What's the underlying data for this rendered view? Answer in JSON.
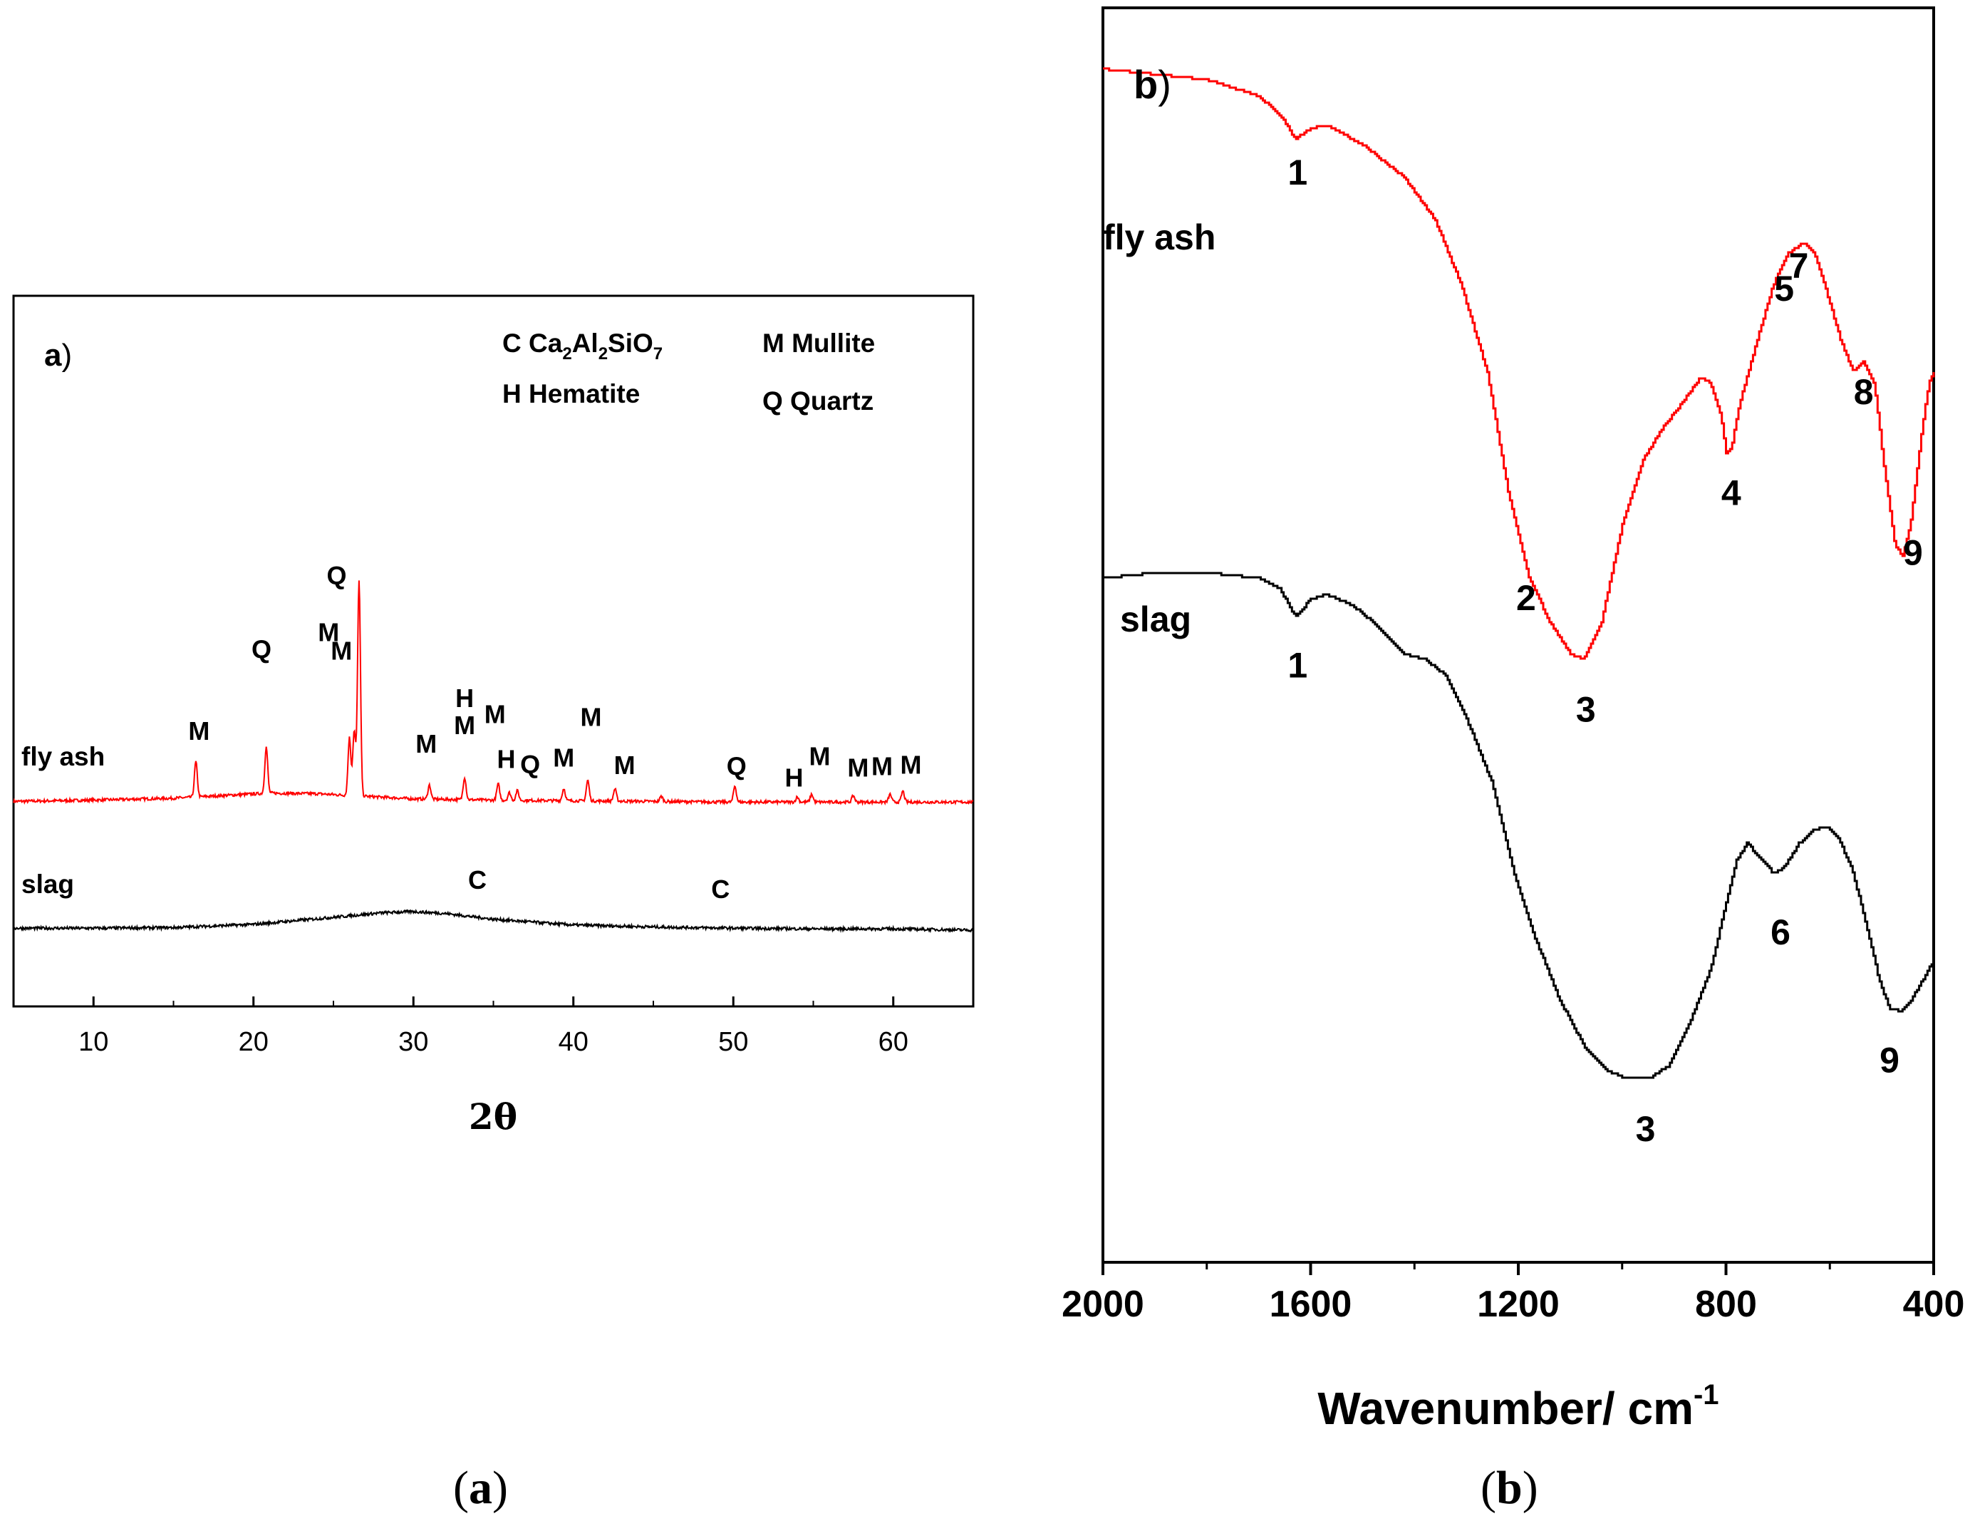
{
  "captions": {
    "a_open": "(",
    "a_letter": "a",
    "a_close": ")",
    "b_open": "(",
    "b_letter": "b",
    "b_close": ")"
  },
  "chart_data": [
    {
      "type": "line",
      "panel_label_letter": "a",
      "panel_label_paren": ")",
      "xlabel": "2θ",
      "ylabel": "",
      "xlim": [
        5,
        65
      ],
      "xticks": [
        10,
        20,
        30,
        40,
        50,
        60
      ],
      "y_ticks_shown": false,
      "colors": {
        "fly ash": "#ff0000",
        "slag": "#000000"
      },
      "legend_entries": [
        {
          "symbol": "C",
          "name": "Ca",
          "sub1": "2",
          "mid": "Al",
          "sub2": "2",
          "end": "SiO",
          "sub3": "7"
        },
        {
          "text": "M Mullite"
        },
        {
          "text": "H Hematite"
        },
        {
          "text": "Q Quartz"
        }
      ],
      "series": [
        {
          "name": "fly ash",
          "color": "#ff0000",
          "baseline": [
            [
              5,
              0.04
            ],
            [
              10,
              0.06
            ],
            [
              15,
              0.09
            ],
            [
              18,
              0.13
            ],
            [
              21,
              0.17
            ],
            [
              24,
              0.16
            ],
            [
              27,
              0.12
            ],
            [
              30,
              0.08
            ],
            [
              35,
              0.06
            ],
            [
              40,
              0.05
            ],
            [
              45,
              0.04
            ],
            [
              50,
              0.03
            ],
            [
              55,
              0.03
            ],
            [
              60,
              0.03
            ],
            [
              65,
              0.03
            ]
          ],
          "peaks": [
            {
              "x": 16.4,
              "h": 0.55
            },
            {
              "x": 20.8,
              "h": 0.72
            },
            {
              "x": 26.0,
              "h": 0.9
            },
            {
              "x": 26.3,
              "h": 1.0
            },
            {
              "x": 26.6,
              "h": 3.35
            },
            {
              "x": 31.0,
              "h": 0.22
            },
            {
              "x": 33.2,
              "h": 0.35
            },
            {
              "x": 35.3,
              "h": 0.25
            },
            {
              "x": 36.0,
              "h": 0.12
            },
            {
              "x": 36.5,
              "h": 0.15
            },
            {
              "x": 39.4,
              "h": 0.19
            },
            {
              "x": 40.9,
              "h": 0.32
            },
            {
              "x": 42.6,
              "h": 0.19
            },
            {
              "x": 45.5,
              "h": 0.08
            },
            {
              "x": 50.1,
              "h": 0.25
            },
            {
              "x": 54.0,
              "h": 0.08
            },
            {
              "x": 54.9,
              "h": 0.12
            },
            {
              "x": 57.5,
              "h": 0.1
            },
            {
              "x": 59.8,
              "h": 0.12
            },
            {
              "x": 60.6,
              "h": 0.17
            }
          ]
        },
        {
          "name": "slag",
          "color": "#000000",
          "baseline": [
            [
              5,
              0.03
            ],
            [
              10,
              0.03
            ],
            [
              15,
              0.04
            ],
            [
              20,
              0.09
            ],
            [
              25,
              0.2
            ],
            [
              28,
              0.27
            ],
            [
              30,
              0.29
            ],
            [
              32,
              0.26
            ],
            [
              35,
              0.17
            ],
            [
              40,
              0.08
            ],
            [
              45,
              0.05
            ],
            [
              50,
              0.03
            ],
            [
              55,
              0.02
            ],
            [
              60,
              0.02
            ],
            [
              65,
              0.0
            ]
          ],
          "peaks": []
        }
      ],
      "peak_labels": [
        {
          "text": "M",
          "x": 16.6,
          "series": "fly ash"
        },
        {
          "text": "Q",
          "x": 20.5,
          "series": "fly ash"
        },
        {
          "text": "Q",
          "x": 25.2,
          "series": "fly ash"
        },
        {
          "text": "M",
          "x": 25.5,
          "series": "fly ash"
        },
        {
          "text": "M",
          "x": 24.7,
          "series": "fly ash"
        },
        {
          "text": "M",
          "x": 30.8,
          "series": "fly ash"
        },
        {
          "text": "H",
          "x": 33.2,
          "series": "fly ash"
        },
        {
          "text": "M",
          "x": 33.2,
          "series": "fly ash"
        },
        {
          "text": "M",
          "x": 35.1,
          "series": "fly ash"
        },
        {
          "text": "H",
          "x": 35.8,
          "series": "fly ash"
        },
        {
          "text": "Q",
          "x": 37.3,
          "series": "fly ash"
        },
        {
          "text": "M",
          "x": 39.4,
          "series": "fly ash"
        },
        {
          "text": "M",
          "x": 41.1,
          "series": "fly ash"
        },
        {
          "text": "M",
          "x": 43.2,
          "series": "fly ash"
        },
        {
          "text": "Q",
          "x": 50.2,
          "series": "fly ash"
        },
        {
          "text": "H",
          "x": 53.8,
          "series": "fly ash"
        },
        {
          "text": "M",
          "x": 55.4,
          "series": "fly ash"
        },
        {
          "text": "M",
          "x": 57.8,
          "series": "fly ash"
        },
        {
          "text": "M",
          "x": 59.3,
          "series": "fly ash"
        },
        {
          "text": "M",
          "x": 61.1,
          "series": "fly ash"
        },
        {
          "text": "C",
          "x": 34.0,
          "series": "slag"
        },
        {
          "text": "C",
          "x": 49.2,
          "series": "slag"
        }
      ]
    },
    {
      "type": "line",
      "panel_label_letter": "b",
      "panel_label_paren": ")",
      "xlabel_main": "Wavenumber/ cm",
      "xlabel_sup": "-1",
      "ylabel": "",
      "xlim": [
        2000,
        400
      ],
      "xticks": [
        2000,
        1600,
        1200,
        800,
        400
      ],
      "y_ticks_shown": false,
      "colors": {
        "fly ash": "#ff0000",
        "slag": "#000000"
      },
      "series": [
        {
          "name": "fly ash",
          "color": "#ff0000",
          "points": [
            [
              2000,
              0.97
            ],
            [
              1900,
              0.965
            ],
            [
              1800,
              0.96
            ],
            [
              1700,
              0.945
            ],
            [
              1655,
              0.925
            ],
            [
              1630,
              0.905
            ],
            [
              1600,
              0.915
            ],
            [
              1570,
              0.918
            ],
            [
              1500,
              0.9
            ],
            [
              1420,
              0.87
            ],
            [
              1360,
              0.83
            ],
            [
              1310,
              0.77
            ],
            [
              1260,
              0.69
            ],
            [
              1220,
              0.58
            ],
            [
              1180,
              0.5
            ],
            [
              1140,
              0.46
            ],
            [
              1100,
              0.43
            ],
            [
              1075,
              0.425
            ],
            [
              1040,
              0.46
            ],
            [
              1000,
              0.55
            ],
            [
              960,
              0.61
            ],
            [
              920,
              0.64
            ],
            [
              880,
              0.665
            ],
            [
              850,
              0.685
            ],
            [
              830,
              0.68
            ],
            [
              810,
              0.65
            ],
            [
              800,
              0.615
            ],
            [
              790,
              0.62
            ],
            [
              775,
              0.66
            ],
            [
              740,
              0.72
            ],
            [
              710,
              0.77
            ],
            [
              680,
              0.8
            ],
            [
              650,
              0.81
            ],
            [
              630,
              0.8
            ],
            [
              610,
              0.77
            ],
            [
              580,
              0.72
            ],
            [
              555,
              0.69
            ],
            [
              535,
              0.7
            ],
            [
              515,
              0.68
            ],
            [
              495,
              0.6
            ],
            [
              475,
              0.53
            ],
            [
              460,
              0.52
            ],
            [
              445,
              0.55
            ],
            [
              425,
              0.63
            ],
            [
              410,
              0.68
            ],
            [
              400,
              0.69
            ]
          ]
        },
        {
          "name": "slag",
          "color": "#000000",
          "points": [
            [
              2000,
              0.5
            ],
            [
              1900,
              0.505
            ],
            [
              1800,
              0.505
            ],
            [
              1700,
              0.5
            ],
            [
              1660,
              0.49
            ],
            [
              1630,
              0.465
            ],
            [
              1600,
              0.48
            ],
            [
              1570,
              0.485
            ],
            [
              1520,
              0.475
            ],
            [
              1470,
              0.455
            ],
            [
              1420,
              0.43
            ],
            [
              1380,
              0.425
            ],
            [
              1340,
              0.41
            ],
            [
              1300,
              0.37
            ],
            [
              1250,
              0.31
            ],
            [
              1210,
              0.23
            ],
            [
              1170,
              0.17
            ],
            [
              1120,
              0.11
            ],
            [
              1070,
              0.065
            ],
            [
              1030,
              0.045
            ],
            [
              990,
              0.038
            ],
            [
              950,
              0.038
            ],
            [
              910,
              0.05
            ],
            [
              870,
              0.09
            ],
            [
              830,
              0.14
            ],
            [
              800,
              0.2
            ],
            [
              780,
              0.24
            ],
            [
              760,
              0.255
            ],
            [
              740,
              0.245
            ],
            [
              710,
              0.228
            ],
            [
              690,
              0.232
            ],
            [
              660,
              0.255
            ],
            [
              630,
              0.268
            ],
            [
              605,
              0.27
            ],
            [
              585,
              0.26
            ],
            [
              560,
              0.235
            ],
            [
              530,
              0.18
            ],
            [
              505,
              0.128
            ],
            [
              485,
              0.103
            ],
            [
              465,
              0.1
            ],
            [
              445,
              0.11
            ],
            [
              420,
              0.13
            ],
            [
              400,
              0.148
            ]
          ]
        }
      ],
      "peak_labels": [
        {
          "text": "1",
          "x": 1625,
          "series": "fly ash"
        },
        {
          "text": "2",
          "x": 1185,
          "series": "fly ash"
        },
        {
          "text": "3",
          "x": 1070,
          "series": "fly ash"
        },
        {
          "text": "4",
          "x": 790,
          "series": "fly ash"
        },
        {
          "text": "5",
          "x": 688,
          "series": "fly ash"
        },
        {
          "text": "7",
          "x": 660,
          "series": "fly ash"
        },
        {
          "text": "8",
          "x": 535,
          "series": "fly ash"
        },
        {
          "text": "9",
          "x": 440,
          "series": "fly ash"
        },
        {
          "text": "1",
          "x": 1625,
          "series": "slag"
        },
        {
          "text": "3",
          "x": 955,
          "series": "slag"
        },
        {
          "text": "6",
          "x": 695,
          "series": "slag"
        },
        {
          "text": "9",
          "x": 485,
          "series": "slag"
        }
      ]
    }
  ]
}
